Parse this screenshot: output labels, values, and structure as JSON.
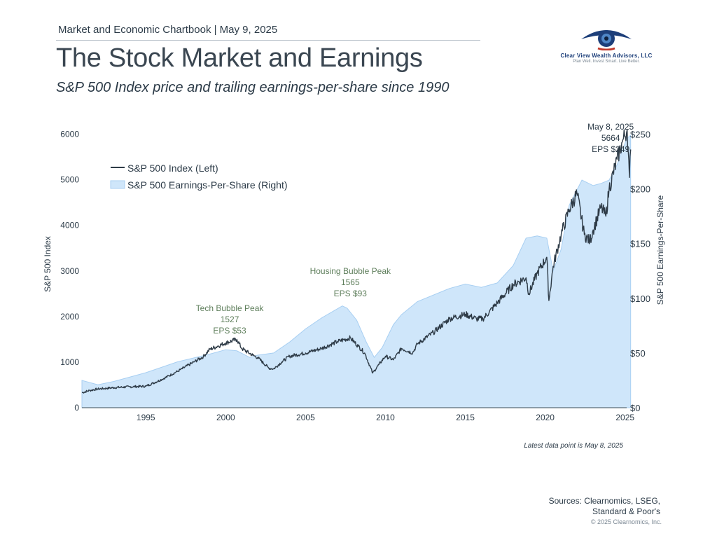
{
  "header": {
    "chartbook_line": "Market and Economic Chartbook | May 9, 2025",
    "title": "The Stock Market and Earnings",
    "subtitle": "S&P 500 Index price and trailing earnings-per-share since 1990"
  },
  "logo": {
    "icon": "eye-icon",
    "name": "Clear View Wealth Advisors, LLC",
    "tagline": "Plan Well. Invest Smart. Live Better."
  },
  "colors": {
    "index_line": "#2e3b47",
    "eps_fill": "#cfe6fa",
    "eps_edge": "#a8cff2",
    "annotation": "#5f7f5c",
    "axis_text": "#2b3a47"
  },
  "chart_data": {
    "type": "area",
    "title": "The Stock Market and Earnings",
    "ylabel": "S&P 500 Index",
    "y2label": "S&P 500 Earnings-Per-Share",
    "xlim": [
      1991,
      2025.1
    ],
    "ylim": [
      0,
      6300
    ],
    "y2lim": [
      0,
      262.5
    ],
    "x_ticks": [
      1995,
      2000,
      2005,
      2010,
      2015,
      2020,
      2025
    ],
    "y_ticks": [
      0,
      1000,
      2000,
      3000,
      4000,
      5000,
      6000
    ],
    "y2_ticks": [
      {
        "value": 0,
        "label": "$0"
      },
      {
        "value": 50,
        "label": "$50"
      },
      {
        "value": 100,
        "label": "$100"
      },
      {
        "value": 150,
        "label": "$150"
      },
      {
        "value": 200,
        "label": "$200"
      },
      {
        "value": 250,
        "label": "$250"
      }
    ],
    "legend_position": "top-left",
    "grid": false,
    "series": [
      {
        "name": "S&P 500 Index (Left)",
        "type": "line",
        "axis": "left",
        "x": [
          1991,
          1991.5,
          1992,
          1993,
          1994,
          1995,
          1996,
          1997,
          1998,
          1998.6,
          1999,
          1999.5,
          2000,
          2000.7,
          2001,
          2001.7,
          2002,
          2002.7,
          2003,
          2003.5,
          2004,
          2005,
          2006,
          2007,
          2007.8,
          2008.3,
          2008.7,
          2009.2,
          2009.6,
          2010,
          2010.5,
          2011,
          2011.7,
          2012,
          2013,
          2014,
          2015,
          2015.7,
          2016.1,
          2016.5,
          2017,
          2018,
          2018.8,
          2018.98,
          2019.5,
          2020.1,
          2020.23,
          2020.5,
          2021,
          2021.5,
          2021.99,
          2022.45,
          2022.8,
          2023,
          2023.5,
          2023.8,
          2024,
          2024.5,
          2024.9,
          2025.13,
          2025.27,
          2025.35
        ],
        "values": [
          330,
          380,
          410,
          440,
          460,
          470,
          620,
          800,
          1000,
          1120,
          1280,
          1350,
          1420,
          1500,
          1300,
          1150,
          1100,
          870,
          850,
          1000,
          1130,
          1200,
          1300,
          1450,
          1530,
          1350,
          1200,
          760,
          950,
          1130,
          1050,
          1300,
          1200,
          1400,
          1650,
          1950,
          2050,
          1950,
          1950,
          2100,
          2300,
          2700,
          2850,
          2500,
          2950,
          3300,
          2350,
          3100,
          3800,
          4350,
          4700,
          3800,
          3650,
          3900,
          4400,
          4200,
          4800,
          5450,
          5900,
          6100,
          5050,
          5664
        ]
      },
      {
        "name": "S&P 500 Earnings-Per-Share (Right)",
        "type": "area",
        "axis": "right",
        "x": [
          1991,
          1992,
          1993,
          1995,
          1997,
          1999,
          2000,
          2000.7,
          2001.5,
          2002,
          2003,
          2004,
          2005,
          2006,
          2007.3,
          2007.6,
          2008.2,
          2008.8,
          2009.3,
          2009.8,
          2010.5,
          2011,
          2012,
          2014,
          2015,
          2016,
          2017,
          2018,
          2018.8,
          2019.5,
          2020.1,
          2020.5,
          2021,
          2021.5,
          2022.3,
          2023,
          2023.5,
          2024,
          2024.5,
          2025.1,
          2025.35
        ],
        "values": [
          25,
          21,
          24,
          32,
          42,
          49,
          53,
          52,
          46,
          48,
          50,
          60,
          72,
          82,
          93,
          91,
          80,
          60,
          46,
          55,
          76,
          85,
          97,
          109,
          113,
          110,
          114,
          130,
          155,
          157,
          155,
          125,
          145,
          185,
          208,
          203,
          205,
          208,
          222,
          246,
          249
        ]
      }
    ],
    "annotations": [
      {
        "lines": [
          "Tech Bubble Peak",
          "1527",
          "EPS $53"
        ],
        "x": 2000.25
      },
      {
        "lines": [
          "Housing Bubble Peak",
          "1565",
          "EPS $93"
        ],
        "x": 2007.8
      },
      {
        "lines": [
          "May 8, 2025",
          "5664",
          "EPS $249"
        ],
        "x": 2024.1
      }
    ]
  },
  "footer": {
    "latest_note": "Latest data point is May 8, 2025",
    "sources_line1": "Sources: Clearnomics, LSEG,",
    "sources_line2": "Standard & Poor's",
    "copyright": "© 2025 Clearnomics, Inc."
  }
}
